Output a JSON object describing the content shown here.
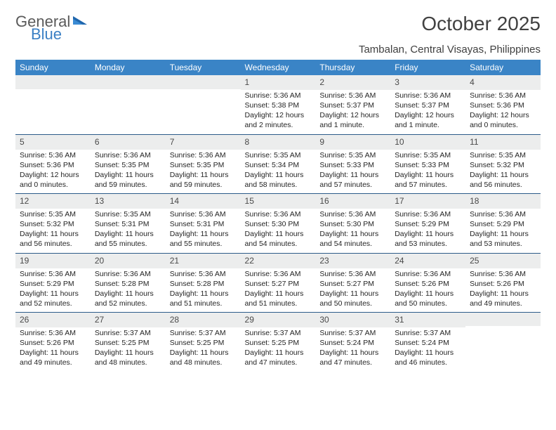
{
  "logo": {
    "text1": "General",
    "text2": "Blue"
  },
  "title": "October 2025",
  "location": "Tambalan, Central Visayas, Philippines",
  "calendar": {
    "header_bg": "#3a84c6",
    "header_fg": "#ffffff",
    "daynum_bg": "#eceded",
    "daynum_border": "#2c5b89",
    "text_color": "#252525",
    "columns": [
      "Sunday",
      "Monday",
      "Tuesday",
      "Wednesday",
      "Thursday",
      "Friday",
      "Saturday"
    ],
    "first_weekday": 3,
    "num_days": 31,
    "days": [
      {
        "n": "1",
        "sunrise": "Sunrise: 5:36 AM",
        "sunset": "Sunset: 5:38 PM",
        "day1": "Daylight: 12 hours",
        "day2": "and 2 minutes."
      },
      {
        "n": "2",
        "sunrise": "Sunrise: 5:36 AM",
        "sunset": "Sunset: 5:37 PM",
        "day1": "Daylight: 12 hours",
        "day2": "and 1 minute."
      },
      {
        "n": "3",
        "sunrise": "Sunrise: 5:36 AM",
        "sunset": "Sunset: 5:37 PM",
        "day1": "Daylight: 12 hours",
        "day2": "and 1 minute."
      },
      {
        "n": "4",
        "sunrise": "Sunrise: 5:36 AM",
        "sunset": "Sunset: 5:36 PM",
        "day1": "Daylight: 12 hours",
        "day2": "and 0 minutes."
      },
      {
        "n": "5",
        "sunrise": "Sunrise: 5:36 AM",
        "sunset": "Sunset: 5:36 PM",
        "day1": "Daylight: 12 hours",
        "day2": "and 0 minutes."
      },
      {
        "n": "6",
        "sunrise": "Sunrise: 5:36 AM",
        "sunset": "Sunset: 5:35 PM",
        "day1": "Daylight: 11 hours",
        "day2": "and 59 minutes."
      },
      {
        "n": "7",
        "sunrise": "Sunrise: 5:36 AM",
        "sunset": "Sunset: 5:35 PM",
        "day1": "Daylight: 11 hours",
        "day2": "and 59 minutes."
      },
      {
        "n": "8",
        "sunrise": "Sunrise: 5:35 AM",
        "sunset": "Sunset: 5:34 PM",
        "day1": "Daylight: 11 hours",
        "day2": "and 58 minutes."
      },
      {
        "n": "9",
        "sunrise": "Sunrise: 5:35 AM",
        "sunset": "Sunset: 5:33 PM",
        "day1": "Daylight: 11 hours",
        "day2": "and 57 minutes."
      },
      {
        "n": "10",
        "sunrise": "Sunrise: 5:35 AM",
        "sunset": "Sunset: 5:33 PM",
        "day1": "Daylight: 11 hours",
        "day2": "and 57 minutes."
      },
      {
        "n": "11",
        "sunrise": "Sunrise: 5:35 AM",
        "sunset": "Sunset: 5:32 PM",
        "day1": "Daylight: 11 hours",
        "day2": "and 56 minutes."
      },
      {
        "n": "12",
        "sunrise": "Sunrise: 5:35 AM",
        "sunset": "Sunset: 5:32 PM",
        "day1": "Daylight: 11 hours",
        "day2": "and 56 minutes."
      },
      {
        "n": "13",
        "sunrise": "Sunrise: 5:35 AM",
        "sunset": "Sunset: 5:31 PM",
        "day1": "Daylight: 11 hours",
        "day2": "and 55 minutes."
      },
      {
        "n": "14",
        "sunrise": "Sunrise: 5:36 AM",
        "sunset": "Sunset: 5:31 PM",
        "day1": "Daylight: 11 hours",
        "day2": "and 55 minutes."
      },
      {
        "n": "15",
        "sunrise": "Sunrise: 5:36 AM",
        "sunset": "Sunset: 5:30 PM",
        "day1": "Daylight: 11 hours",
        "day2": "and 54 minutes."
      },
      {
        "n": "16",
        "sunrise": "Sunrise: 5:36 AM",
        "sunset": "Sunset: 5:30 PM",
        "day1": "Daylight: 11 hours",
        "day2": "and 54 minutes."
      },
      {
        "n": "17",
        "sunrise": "Sunrise: 5:36 AM",
        "sunset": "Sunset: 5:29 PM",
        "day1": "Daylight: 11 hours",
        "day2": "and 53 minutes."
      },
      {
        "n": "18",
        "sunrise": "Sunrise: 5:36 AM",
        "sunset": "Sunset: 5:29 PM",
        "day1": "Daylight: 11 hours",
        "day2": "and 53 minutes."
      },
      {
        "n": "19",
        "sunrise": "Sunrise: 5:36 AM",
        "sunset": "Sunset: 5:29 PM",
        "day1": "Daylight: 11 hours",
        "day2": "and 52 minutes."
      },
      {
        "n": "20",
        "sunrise": "Sunrise: 5:36 AM",
        "sunset": "Sunset: 5:28 PM",
        "day1": "Daylight: 11 hours",
        "day2": "and 52 minutes."
      },
      {
        "n": "21",
        "sunrise": "Sunrise: 5:36 AM",
        "sunset": "Sunset: 5:28 PM",
        "day1": "Daylight: 11 hours",
        "day2": "and 51 minutes."
      },
      {
        "n": "22",
        "sunrise": "Sunrise: 5:36 AM",
        "sunset": "Sunset: 5:27 PM",
        "day1": "Daylight: 11 hours",
        "day2": "and 51 minutes."
      },
      {
        "n": "23",
        "sunrise": "Sunrise: 5:36 AM",
        "sunset": "Sunset: 5:27 PM",
        "day1": "Daylight: 11 hours",
        "day2": "and 50 minutes."
      },
      {
        "n": "24",
        "sunrise": "Sunrise: 5:36 AM",
        "sunset": "Sunset: 5:26 PM",
        "day1": "Daylight: 11 hours",
        "day2": "and 50 minutes."
      },
      {
        "n": "25",
        "sunrise": "Sunrise: 5:36 AM",
        "sunset": "Sunset: 5:26 PM",
        "day1": "Daylight: 11 hours",
        "day2": "and 49 minutes."
      },
      {
        "n": "26",
        "sunrise": "Sunrise: 5:36 AM",
        "sunset": "Sunset: 5:26 PM",
        "day1": "Daylight: 11 hours",
        "day2": "and 49 minutes."
      },
      {
        "n": "27",
        "sunrise": "Sunrise: 5:37 AM",
        "sunset": "Sunset: 5:25 PM",
        "day1": "Daylight: 11 hours",
        "day2": "and 48 minutes."
      },
      {
        "n": "28",
        "sunrise": "Sunrise: 5:37 AM",
        "sunset": "Sunset: 5:25 PM",
        "day1": "Daylight: 11 hours",
        "day2": "and 48 minutes."
      },
      {
        "n": "29",
        "sunrise": "Sunrise: 5:37 AM",
        "sunset": "Sunset: 5:25 PM",
        "day1": "Daylight: 11 hours",
        "day2": "and 47 minutes."
      },
      {
        "n": "30",
        "sunrise": "Sunrise: 5:37 AM",
        "sunset": "Sunset: 5:24 PM",
        "day1": "Daylight: 11 hours",
        "day2": "and 47 minutes."
      },
      {
        "n": "31",
        "sunrise": "Sunrise: 5:37 AM",
        "sunset": "Sunset: 5:24 PM",
        "day1": "Daylight: 11 hours",
        "day2": "and 46 minutes."
      }
    ]
  }
}
